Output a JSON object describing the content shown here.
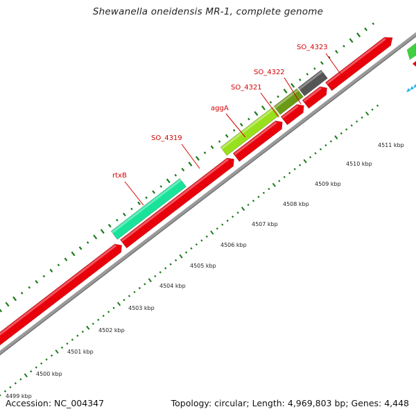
{
  "title": "Shewanella oneidensis MR-1, complete genome",
  "footer": {
    "accession": "Accession: NC_004347",
    "summary": "Topology: circular; Length: 4,969,803 bp; Genes: 4,448"
  },
  "colors": {
    "cds": "#e8000b",
    "cds_dark": "#b80000",
    "backbone": "#8c8c8c",
    "gc_dots": "#1a7a1a",
    "rtxB_gene": "#19e39a",
    "aggA_gene": "#99e01c",
    "SO_4321_gene": "#6b9a16",
    "SO_4322_gene": "#555555",
    "edge_green": "#3fd13f",
    "edge_blue": "#27b4ef",
    "label_red": "#d40000"
  },
  "gene_labels": [
    "rtxB",
    "SO_4319",
    "aggA",
    "SO_4321",
    "SO_4322",
    "SO_4323"
  ],
  "kbp_ticks": [
    "4499 kbp",
    "4500 kbp",
    "4501 kbp",
    "4502 kbp",
    "4503 kbp",
    "4504 kbp",
    "4505 kbp",
    "4506 kbp",
    "4507 kbp",
    "4508 kbp",
    "4509 kbp",
    "4510 kbp",
    "4511 kbp"
  ]
}
